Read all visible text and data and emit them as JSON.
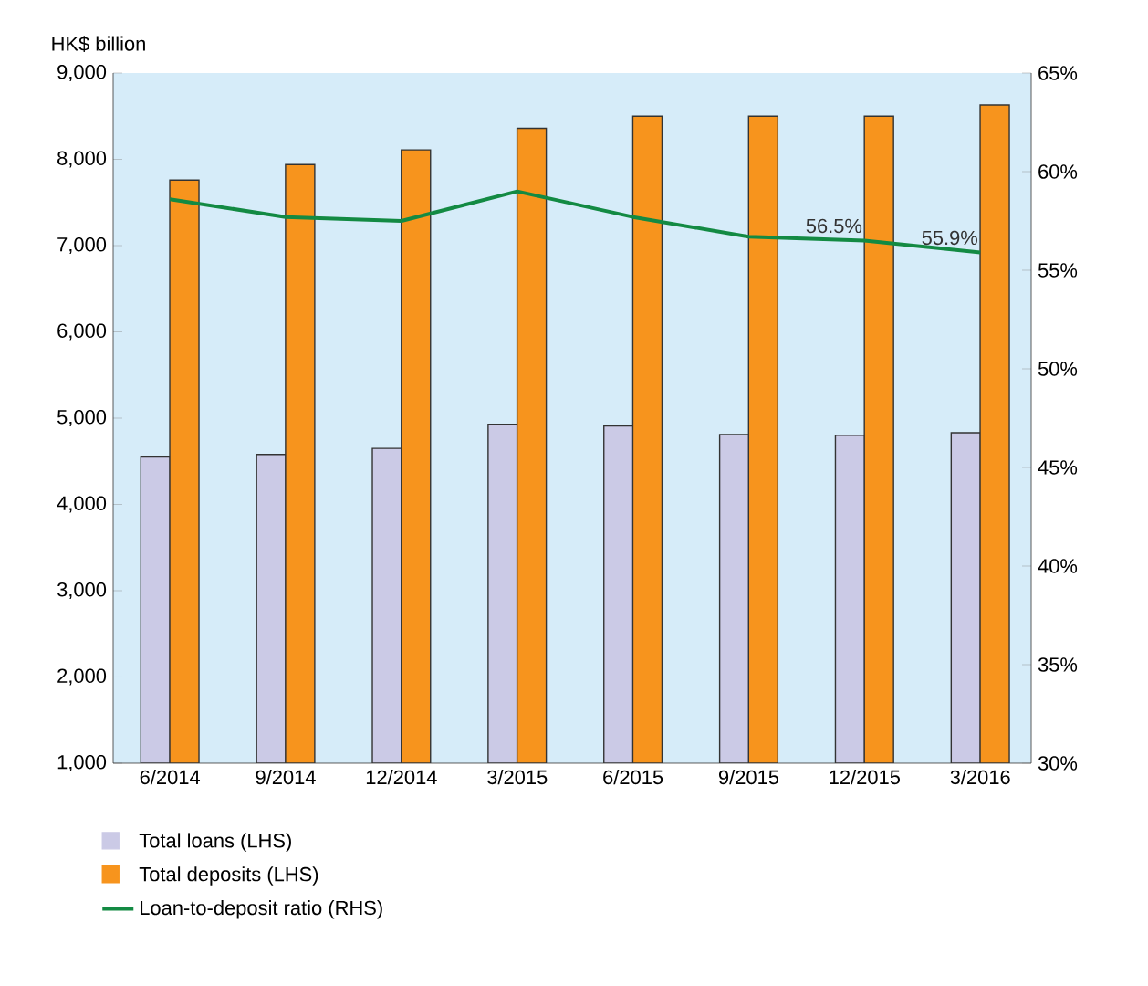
{
  "chart_data": {
    "type": "bar",
    "ylabel": "HK$ billion",
    "categories": [
      "6/2014",
      "9/2014",
      "12/2014",
      "3/2015",
      "6/2015",
      "9/2015",
      "12/2015",
      "3/2016"
    ],
    "series": [
      {
        "name": "Total loans (LHS)",
        "color": "#cbcae6",
        "values": [
          4550,
          4580,
          4650,
          4930,
          4910,
          4810,
          4800,
          4830
        ]
      },
      {
        "name": "Total deposits (LHS)",
        "color": "#f7941d",
        "values": [
          7760,
          7940,
          8110,
          8360,
          8500,
          8500,
          8500,
          8630
        ]
      },
      {
        "name": "Loan-to-deposit ratio (RHS)",
        "type": "line",
        "axis": "y2",
        "color": "#138a43",
        "values": [
          58.6,
          57.7,
          57.5,
          59.0,
          57.7,
          56.7,
          56.5,
          55.9
        ],
        "value_labels": [
          null,
          null,
          null,
          null,
          null,
          null,
          "56.5%",
          "55.9%"
        ]
      }
    ],
    "ylim": [
      1000,
      9000
    ],
    "yticks": [
      {
        "value": 1000,
        "label": "1,000"
      },
      {
        "value": 2000,
        "label": "2,000"
      },
      {
        "value": 3000,
        "label": "3,000"
      },
      {
        "value": 4000,
        "label": "4,000"
      },
      {
        "value": 5000,
        "label": "5,000"
      },
      {
        "value": 6000,
        "label": "6,000"
      },
      {
        "value": 7000,
        "label": "7,000"
      },
      {
        "value": 8000,
        "label": "8,000"
      },
      {
        "value": 9000,
        "label": "9,000"
      }
    ],
    "y2lim": [
      30,
      65
    ],
    "y2ticks": [
      {
        "value": 30,
        "label": "30%"
      },
      {
        "value": 35,
        "label": "35%"
      },
      {
        "value": 40,
        "label": "40%"
      },
      {
        "value": 45,
        "label": "45%"
      },
      {
        "value": 50,
        "label": "50%"
      },
      {
        "value": 55,
        "label": "55%"
      },
      {
        "value": 60,
        "label": "60%"
      },
      {
        "value": 65,
        "label": "65%"
      }
    ],
    "legend": "bottom"
  }
}
